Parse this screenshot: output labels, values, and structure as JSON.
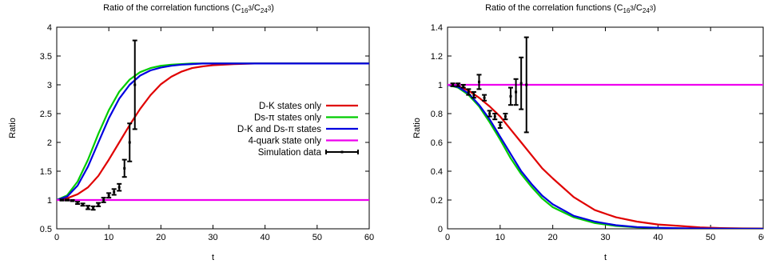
{
  "charts": [
    {
      "title_main": "Ratio of the correlation functions (C",
      "title_sub1": "16",
      "title_sup1": "3",
      "title_mid": "/C",
      "title_sub2": "24",
      "title_sup2": "3",
      "title_end": ")"
    },
    {
      "title_main": "Ratio of the correlation functions (C",
      "title_sub1": "16",
      "title_sup1": "3",
      "title_mid": "/C",
      "title_sub2": "24",
      "title_sup2": "3",
      "title_end": ")"
    }
  ],
  "chart_data": [
    {
      "type": "line",
      "title": "Ratio of the correlation functions (C16³/C24³)",
      "xlabel": "t",
      "ylabel": "Ratio",
      "xlim": [
        0,
        60
      ],
      "ylim": [
        0.5,
        4
      ],
      "xticks": [
        "0",
        "10",
        "20",
        "30",
        "40",
        "50",
        "60"
      ],
      "yticks": [
        "0.5",
        "1",
        "1.5",
        "2",
        "2.5",
        "3",
        "3.5",
        "4"
      ],
      "legend_position": "right-middle",
      "x": [
        0,
        2,
        4,
        6,
        8,
        10,
        12,
        14,
        16,
        18,
        20,
        22,
        24,
        26,
        28,
        30,
        34,
        38,
        42,
        46,
        50,
        55,
        60
      ],
      "series": [
        {
          "name": "D-K states only",
          "color": "#e00000",
          "values": [
            1.0,
            1.03,
            1.1,
            1.22,
            1.42,
            1.7,
            2.0,
            2.3,
            2.58,
            2.82,
            3.01,
            3.14,
            3.23,
            3.29,
            3.32,
            3.34,
            3.36,
            3.37,
            3.37,
            3.37,
            3.37,
            3.37,
            3.37
          ]
        },
        {
          "name": "Ds-π states only",
          "color": "#00cc00",
          "values": [
            1.0,
            1.08,
            1.32,
            1.7,
            2.15,
            2.56,
            2.88,
            3.09,
            3.22,
            3.29,
            3.33,
            3.35,
            3.36,
            3.37,
            3.37,
            3.37,
            3.37,
            3.37,
            3.37,
            3.37,
            3.37,
            3.37,
            3.37
          ]
        },
        {
          "name": "D-K and Ds-π states",
          "color": "#0000e0",
          "values": [
            1.0,
            1.06,
            1.25,
            1.58,
            2.0,
            2.42,
            2.76,
            3.0,
            3.16,
            3.25,
            3.3,
            3.33,
            3.35,
            3.36,
            3.37,
            3.37,
            3.37,
            3.37,
            3.37,
            3.37,
            3.37,
            3.37,
            3.37
          ]
        },
        {
          "name": "4-quark state only",
          "color": "#ee00ee",
          "values": [
            1,
            1,
            1,
            1,
            1,
            1,
            1,
            1,
            1,
            1,
            1,
            1,
            1,
            1,
            1,
            1,
            1,
            1,
            1,
            1,
            1,
            1,
            1
          ]
        }
      ],
      "points": {
        "name": "Simulation data",
        "color": "#000000",
        "x": [
          1,
          2,
          3,
          4,
          5,
          6,
          7,
          8,
          9,
          10,
          11,
          12,
          13,
          14,
          15
        ],
        "y": [
          1.0,
          1.0,
          0.99,
          0.95,
          0.92,
          0.87,
          0.86,
          0.92,
          1.0,
          1.08,
          1.14,
          1.22,
          1.55,
          2.0,
          3.0
        ],
        "err": [
          0.01,
          0.01,
          0.01,
          0.02,
          0.02,
          0.03,
          0.03,
          0.03,
          0.04,
          0.04,
          0.05,
          0.06,
          0.15,
          0.33,
          0.77
        ]
      }
    },
    {
      "type": "line",
      "title": "Ratio of the correlation functions (C16³/C24³)",
      "xlabel": "t",
      "ylabel": "Ratio",
      "xlim": [
        0,
        60
      ],
      "ylim": [
        0,
        1.4
      ],
      "xticks": [
        "0",
        "10",
        "20",
        "30",
        "40",
        "50",
        "60"
      ],
      "yticks": [
        "0",
        "0.2",
        "0.4",
        "0.6",
        "0.8",
        "1",
        "1.2",
        "1.4"
      ],
      "legend_position": "right-middle",
      "x": [
        0,
        2,
        4,
        6,
        8,
        10,
        12,
        14,
        16,
        18,
        20,
        24,
        28,
        32,
        36,
        40,
        44,
        48,
        52,
        56,
        60
      ],
      "series": [
        {
          "name": "D-K states only",
          "color": "#e00000",
          "values": [
            1.0,
            0.99,
            0.96,
            0.91,
            0.85,
            0.78,
            0.69,
            0.6,
            0.51,
            0.42,
            0.35,
            0.22,
            0.13,
            0.08,
            0.05,
            0.03,
            0.02,
            0.01,
            0.005,
            0.003,
            0.002
          ]
        },
        {
          "name": "Ds-π states only",
          "color": "#00cc00",
          "values": [
            1.0,
            0.98,
            0.93,
            0.85,
            0.74,
            0.62,
            0.49,
            0.38,
            0.29,
            0.21,
            0.15,
            0.08,
            0.04,
            0.02,
            0.01,
            0.006,
            0.003,
            0.001,
            0.0,
            0.0,
            0.0
          ]
        },
        {
          "name": "D-K and Ds-π states",
          "color": "#0000e0",
          "values": [
            1.0,
            0.985,
            0.94,
            0.86,
            0.76,
            0.64,
            0.52,
            0.4,
            0.31,
            0.23,
            0.17,
            0.09,
            0.05,
            0.025,
            0.012,
            0.007,
            0.004,
            0.002,
            0.001,
            0.0,
            0.0
          ]
        },
        {
          "name": "4-quark state only",
          "color": "#ee00ee",
          "values": [
            1,
            1,
            1,
            1,
            1,
            1,
            1,
            1,
            1,
            1,
            1,
            1,
            1,
            1,
            1,
            1,
            1,
            1,
            1,
            1,
            1
          ]
        }
      ],
      "points": {
        "name": "Simulation data",
        "color": "#000000",
        "x": [
          1,
          2,
          3,
          4,
          5,
          6,
          7,
          8,
          9,
          10,
          11,
          12,
          13,
          14,
          15
        ],
        "y": [
          1.0,
          1.0,
          0.99,
          0.95,
          0.93,
          1.02,
          0.91,
          0.8,
          0.78,
          0.72,
          0.78,
          0.92,
          0.95,
          1.01,
          1.0
        ],
        "err": [
          0.01,
          0.01,
          0.01,
          0.02,
          0.02,
          0.05,
          0.02,
          0.02,
          0.02,
          0.02,
          0.02,
          0.06,
          0.09,
          0.18,
          0.33
        ]
      }
    }
  ]
}
